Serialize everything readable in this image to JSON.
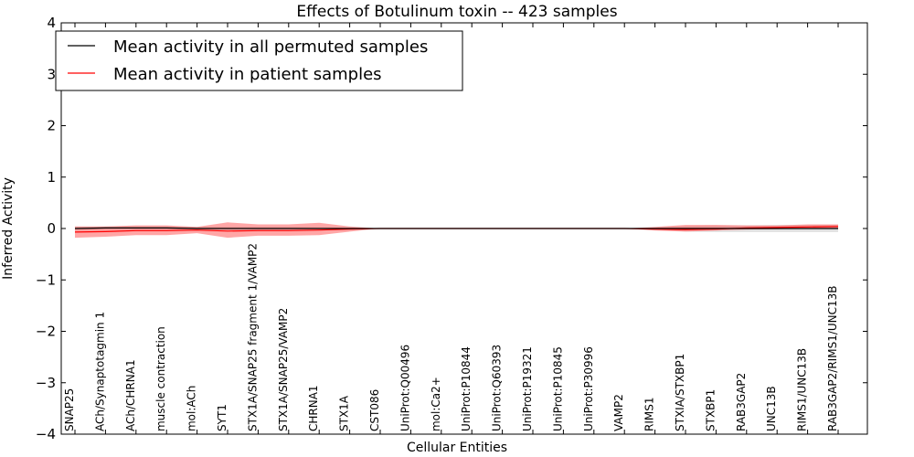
{
  "chart_data": {
    "type": "line",
    "title": "Effects of Botulinum toxin -- 423 samples",
    "xlabel": "Cellular Entities",
    "ylabel": "Inferred Activity",
    "ylim": [
      -4,
      4
    ],
    "yticks": [
      -4,
      -3,
      -2,
      -1,
      0,
      1,
      2,
      3,
      4
    ],
    "ytick_labels": [
      "−4",
      "−3",
      "−2",
      "−1",
      "0",
      "1",
      "2",
      "3",
      "4"
    ],
    "grid": false,
    "legend_position": "top-left",
    "categories": [
      "SNAP25",
      "ACh/Synaptotagmin 1",
      "ACh/CHRNA1",
      "muscle contraction",
      "mol:ACh",
      "SYT1",
      "STX1A/SNAP25 fragment 1/VAMP2",
      "STX1A/SNAP25/VAMP2",
      "CHRNA1",
      "STX1A",
      "CST086",
      "UniProt:Q00496",
      "mol:Ca2+",
      "UniProt:P10844",
      "UniProt:Q60393",
      "UniProt:P19321",
      "UniProt:P10845",
      "UniProt:P30996",
      "VAMP2",
      "RIMS1",
      "STXIA/STXBP1",
      "STXBP1",
      "RAB3GAP2",
      "UNC13B",
      "RIMS1/UNC13B",
      "RAB3GAP2/RIMS1/UNC13B"
    ],
    "series": [
      {
        "name": "Mean activity in all permuted samples",
        "color": "#000000",
        "values": [
          0.0,
          0.01,
          0.01,
          0.01,
          0.0,
          0.0,
          0.0,
          0.0,
          0.0,
          0.0,
          0.0,
          0.0,
          0.0,
          0.0,
          0.0,
          0.0,
          0.0,
          0.0,
          0.0,
          0.0,
          0.0,
          0.0,
          0.0,
          0.0,
          0.0,
          0.0
        ],
        "band_lower": [
          -0.04,
          -0.03,
          -0.03,
          -0.03,
          -0.02,
          -0.02,
          -0.02,
          -0.02,
          -0.01,
          -0.01,
          0.0,
          0.0,
          0.0,
          0.0,
          0.0,
          0.0,
          0.0,
          0.0,
          0.0,
          -0.02,
          -0.06,
          -0.07,
          -0.07,
          -0.07,
          -0.07,
          -0.07
        ],
        "band_upper": [
          0.04,
          0.04,
          0.04,
          0.04,
          0.03,
          0.03,
          0.03,
          0.03,
          0.02,
          0.01,
          0.0,
          0.0,
          0.0,
          0.0,
          0.0,
          0.0,
          0.0,
          0.0,
          0.0,
          0.02,
          0.05,
          0.06,
          0.06,
          0.07,
          0.07,
          0.07
        ]
      },
      {
        "name": "Mean activity in patient samples",
        "color": "#ff0000",
        "band_color": "#ff4d4d",
        "values": [
          -0.07,
          -0.06,
          -0.04,
          -0.04,
          -0.03,
          -0.05,
          -0.04,
          -0.04,
          -0.03,
          -0.01,
          0.0,
          0.0,
          0.0,
          0.0,
          0.0,
          0.0,
          0.0,
          0.0,
          0.0,
          -0.01,
          -0.02,
          -0.01,
          0.01,
          0.02,
          0.03,
          0.04
        ],
        "band_lower": [
          -0.18,
          -0.16,
          -0.13,
          -0.13,
          -0.09,
          -0.18,
          -0.14,
          -0.14,
          -0.13,
          -0.06,
          0.0,
          0.0,
          0.0,
          0.0,
          0.0,
          0.0,
          0.0,
          0.0,
          0.0,
          -0.04,
          -0.06,
          -0.04,
          -0.02,
          -0.01,
          0.0,
          0.0
        ],
        "band_upper": [
          0.04,
          0.04,
          0.06,
          0.06,
          0.03,
          0.12,
          0.08,
          0.08,
          0.11,
          0.04,
          0.0,
          0.0,
          0.0,
          0.0,
          0.0,
          0.0,
          0.0,
          0.0,
          0.0,
          0.03,
          0.07,
          0.07,
          0.06,
          0.06,
          0.08,
          0.08
        ]
      }
    ]
  }
}
